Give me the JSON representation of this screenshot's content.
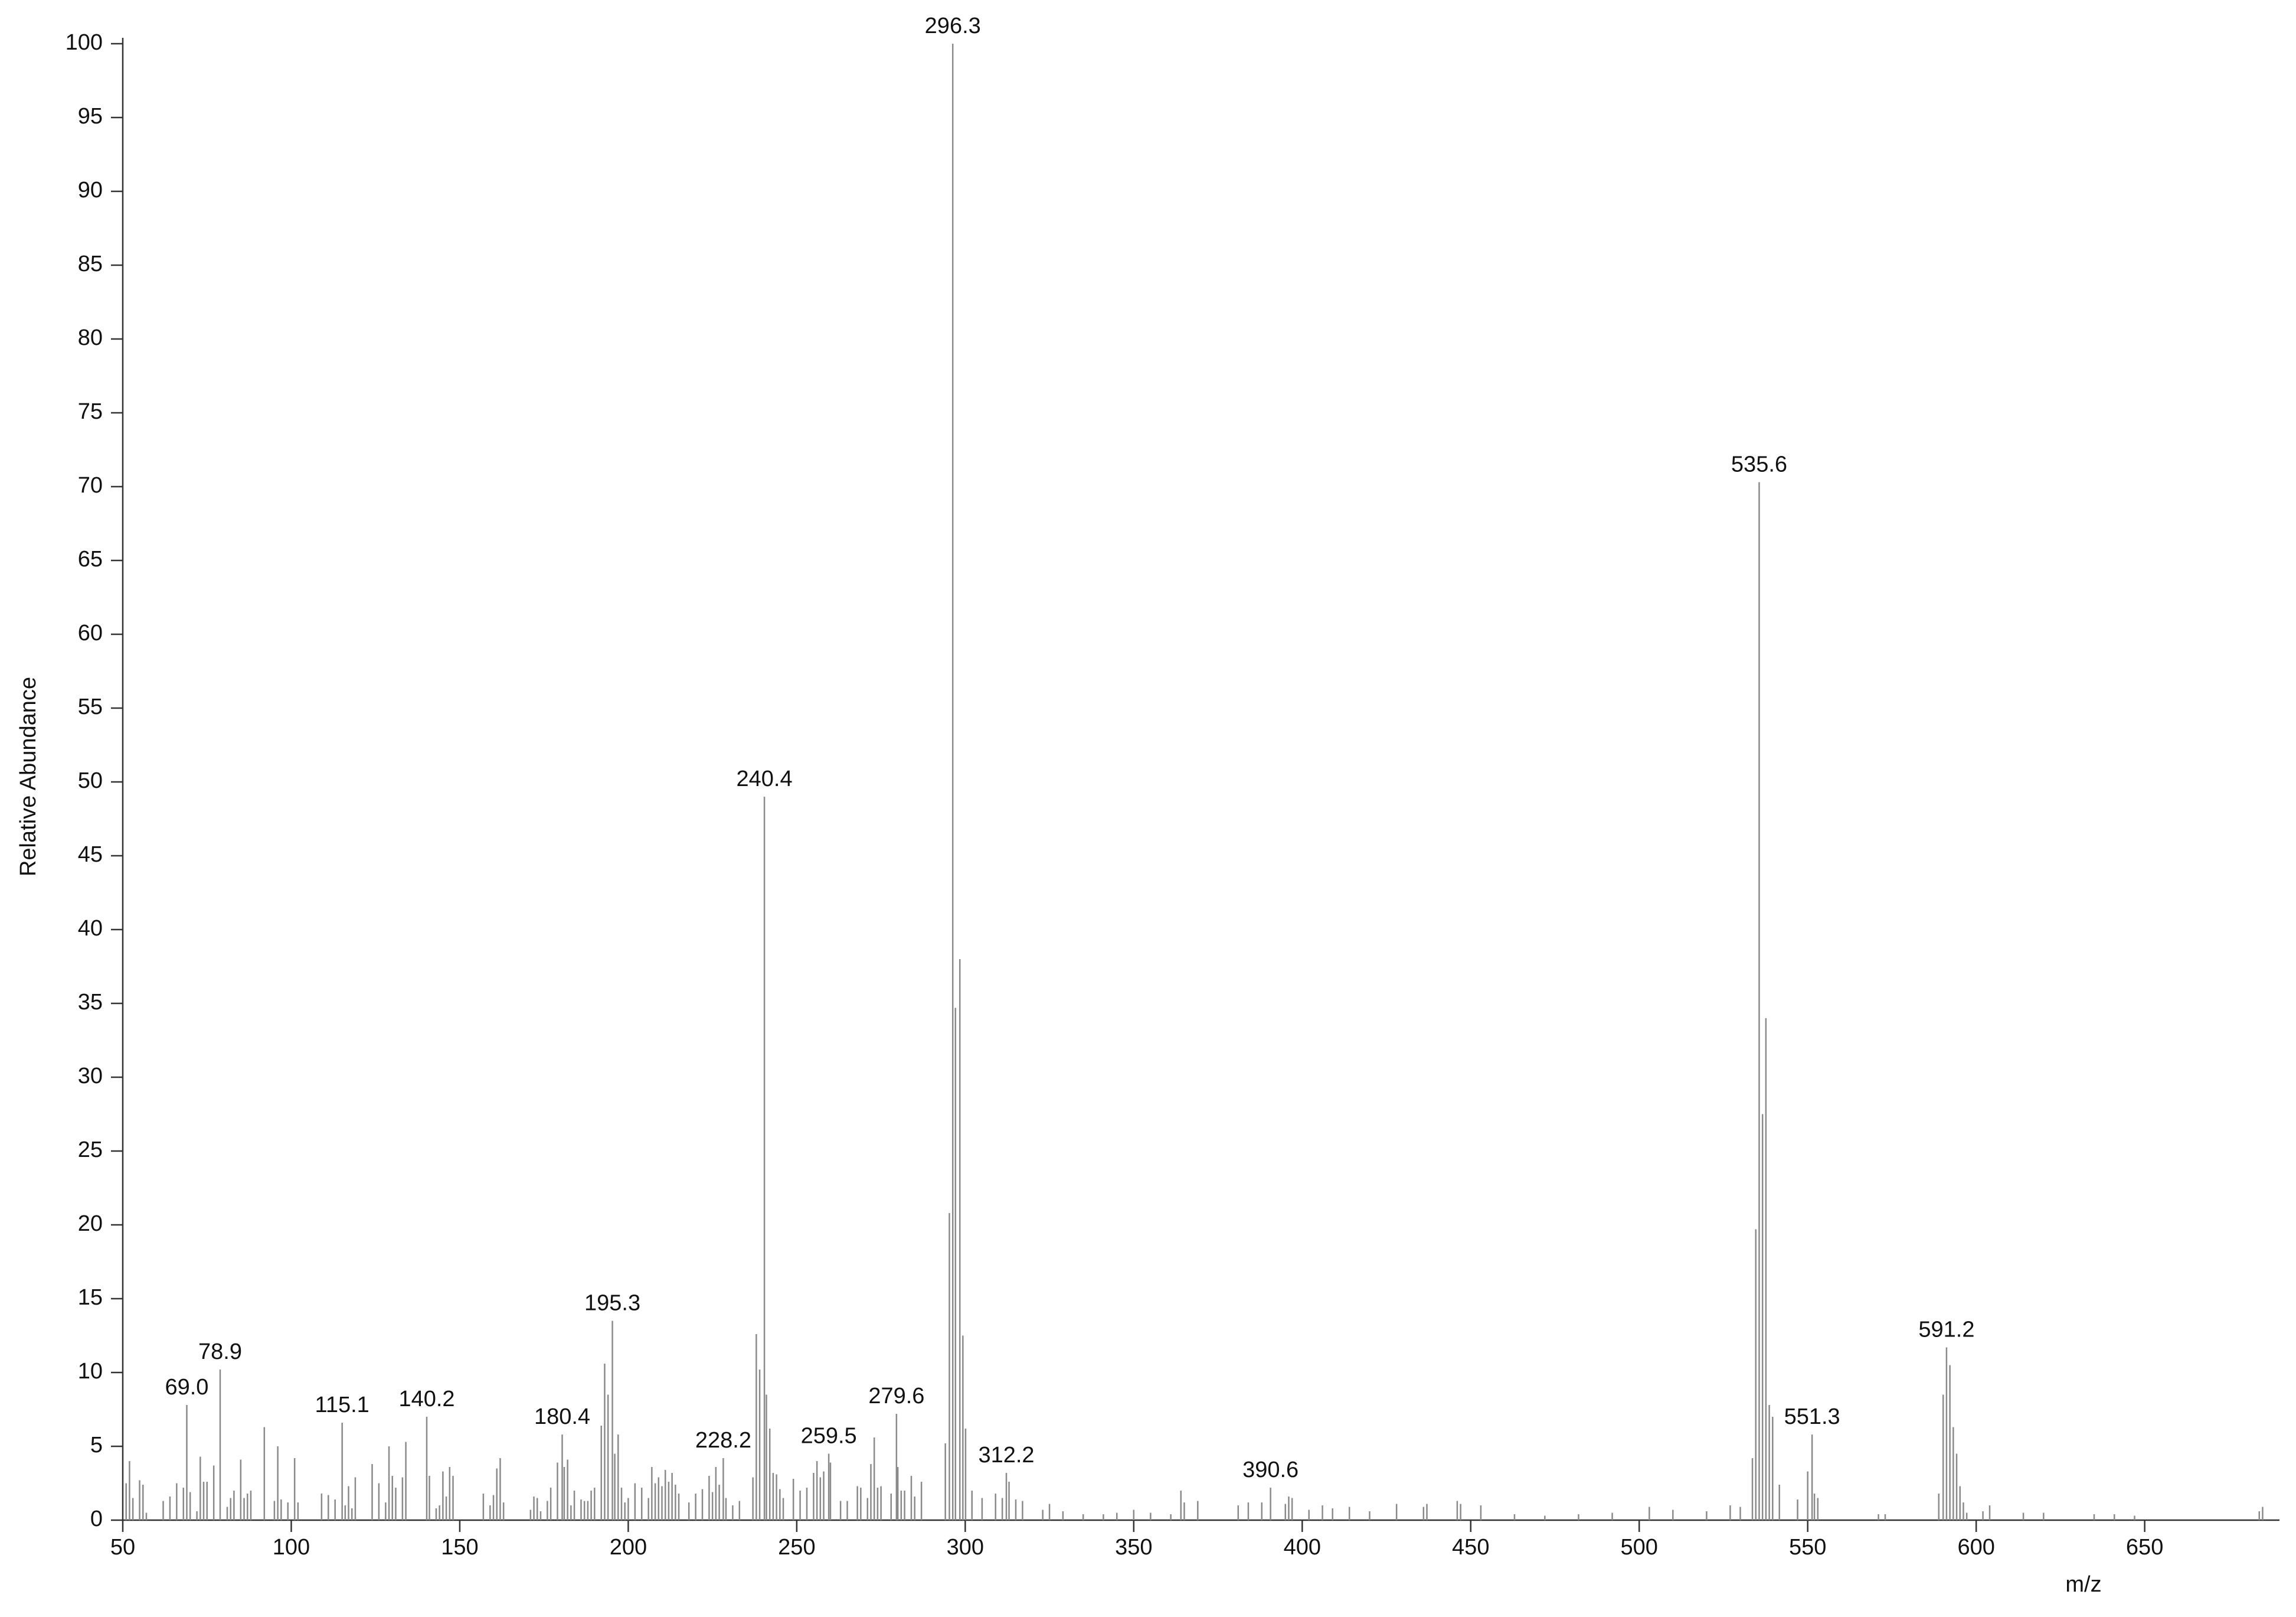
{
  "chart_data": {
    "type": "stem",
    "x_label": "m/z",
    "y_label": "Relative Abundance",
    "color": "#8a8a8a",
    "xlim": [
      50,
      690
    ],
    "xticks": [
      50,
      100,
      150,
      200,
      250,
      300,
      350,
      400,
      450,
      500,
      550,
      600,
      650
    ],
    "ylim": [
      0,
      100
    ],
    "yticks": [
      0,
      5,
      10,
      15,
      20,
      25,
      30,
      35,
      40,
      45,
      50,
      55,
      60,
      65,
      70,
      75,
      80,
      85,
      90,
      95,
      100
    ],
    "x": [
      51,
      52,
      53,
      55,
      56,
      57,
      62,
      64,
      66,
      68,
      69,
      70,
      72,
      73,
      74,
      75,
      77,
      78.9,
      81,
      82,
      83,
      85,
      86,
      87,
      88,
      92,
      95,
      96,
      97,
      99,
      101,
      102,
      109,
      111,
      113,
      115.1,
      116,
      117,
      118,
      119,
      124,
      126,
      128,
      129,
      130,
      131,
      133,
      134,
      140.2,
      141,
      143,
      144,
      145,
      146,
      147,
      148,
      157,
      159,
      160,
      161,
      162,
      163,
      171,
      172,
      173,
      174,
      176,
      177,
      179,
      180.4,
      181,
      182,
      183,
      184,
      186,
      187,
      188,
      189,
      190,
      192,
      193,
      194,
      195.3,
      196,
      197,
      198,
      199,
      200,
      202,
      204,
      206,
      207,
      208,
      209,
      210,
      211,
      212,
      213,
      214,
      215,
      218,
      220,
      222,
      224,
      225,
      226,
      227,
      228.2,
      229,
      231,
      233,
      237,
      238,
      239,
      240.4,
      241,
      242,
      243,
      244,
      245,
      246,
      249,
      251,
      253,
      255,
      256,
      257,
      258,
      259.5,
      260,
      263,
      265,
      268,
      269,
      271,
      272,
      273,
      274,
      275,
      278,
      279.6,
      280,
      281,
      282,
      284,
      285,
      287,
      294.1,
      295.3,
      296.3,
      297.1,
      298.4,
      299.3,
      300.1,
      302,
      305,
      309,
      311,
      312.2,
      313,
      315,
      317,
      323,
      325,
      329,
      335,
      341,
      345,
      350,
      355,
      361,
      364,
      365,
      369,
      381,
      384,
      388,
      390.6,
      395,
      396,
      397,
      402,
      406,
      409,
      414,
      420,
      428,
      436,
      437,
      446,
      447,
      453,
      463,
      472,
      482,
      492,
      503,
      510,
      520,
      527,
      530,
      533.6,
      534.6,
      535.6,
      536.6,
      537.6,
      538.6,
      539.6,
      541.6,
      547,
      550,
      551.3,
      552,
      553,
      571,
      573,
      588.9,
      590.2,
      591.2,
      592.2,
      593.2,
      594.2,
      595.2,
      596.2,
      597.2,
      602,
      604,
      614,
      620,
      635,
      641,
      647,
      684,
      685
    ],
    "values": [
      2.5,
      4.0,
      1.5,
      2.7,
      2.4,
      0.5,
      1.3,
      1.6,
      2.5,
      2.2,
      7.8,
      1.9,
      0.6,
      4.3,
      2.6,
      2.6,
      3.7,
      10.2,
      0.9,
      1.5,
      2.0,
      4.1,
      1.5,
      1.8,
      2.0,
      6.3,
      1.3,
      5.0,
      1.4,
      1.2,
      4.2,
      1.2,
      1.8,
      1.7,
      1.4,
      6.6,
      1.0,
      2.3,
      0.8,
      2.9,
      3.8,
      2.5,
      1.2,
      5.0,
      3.0,
      2.2,
      2.9,
      5.3,
      7.0,
      3.0,
      0.8,
      1.0,
      3.3,
      1.6,
      3.6,
      3.0,
      1.8,
      1.0,
      1.7,
      3.5,
      4.2,
      1.2,
      0.7,
      1.6,
      1.5,
      0.6,
      1.3,
      2.2,
      3.9,
      5.8,
      3.6,
      4.1,
      1.0,
      2.0,
      1.4,
      1.3,
      1.3,
      2.0,
      2.2,
      6.4,
      10.6,
      8.5,
      13.5,
      4.5,
      5.8,
      2.2,
      1.2,
      1.5,
      2.5,
      2.2,
      1.5,
      3.6,
      2.5,
      2.9,
      2.3,
      3.4,
      2.6,
      3.2,
      2.4,
      1.8,
      1.2,
      1.8,
      2.1,
      3.0,
      1.9,
      3.6,
      2.4,
      4.2,
      1.5,
      1.0,
      1.3,
      2.9,
      12.6,
      10.2,
      49,
      8.5,
      6.2,
      3.2,
      3.1,
      2.1,
      1.5,
      2.8,
      2.0,
      2.2,
      3.2,
      4.0,
      2.9,
      3.3,
      4.5,
      3.9,
      1.3,
      1.3,
      2.3,
      2.2,
      1.5,
      3.8,
      5.6,
      2.2,
      2.3,
      1.8,
      7.2,
      3.6,
      2.0,
      2.0,
      3.0,
      1.6,
      2.6,
      5.2,
      20.8,
      100,
      34.7,
      38,
      12.5,
      6.2,
      2.0,
      1.5,
      1.8,
      1.5,
      3.2,
      2.6,
      1.4,
      1.3,
      0.7,
      1.1,
      0.6,
      0.4,
      0.4,
      0.5,
      0.7,
      0.5,
      0.4,
      2.0,
      1.2,
      1.3,
      1.0,
      1.2,
      1.2,
      2.2,
      1.1,
      1.6,
      1.5,
      0.7,
      1.0,
      0.8,
      0.9,
      0.6,
      1.1,
      0.9,
      1.1,
      1.3,
      1.1,
      1.0,
      0.4,
      0.3,
      0.4,
      0.5,
      0.9,
      0.7,
      0.6,
      1.0,
      0.9,
      4.2,
      19.7,
      70.3,
      27.5,
      34,
      7.8,
      7.0,
      2.4,
      1.4,
      3.3,
      5.8,
      1.8,
      1.5,
      0.4,
      0.4,
      1.8,
      8.5,
      11.7,
      10.5,
      6.3,
      4.5,
      2.3,
      1.2,
      0.5,
      0.6,
      1.0,
      0.5,
      0.5,
      0.4,
      0.4,
      0.3,
      0.6,
      0.9
    ],
    "peak_labels": [
      {
        "value": 69,
        "label": "69.0"
      },
      {
        "value": 78.9,
        "label": "78.9"
      },
      {
        "value": 115.1,
        "label": "115.1"
      },
      {
        "value": 140.2,
        "label": "140.2"
      },
      {
        "value": 180.4,
        "label": "180.4"
      },
      {
        "value": 195.3,
        "label": "195.3"
      },
      {
        "value": 228.2,
        "label": "228.2"
      },
      {
        "value": 240.4,
        "label": "240.4"
      },
      {
        "value": 259.5,
        "label": "259.5"
      },
      {
        "value": 279.6,
        "label": "279.6"
      },
      {
        "value": 296.3,
        "label": "296.3"
      },
      {
        "value": 312.2,
        "label": "312.2"
      },
      {
        "value": 390.6,
        "label": "390.6"
      },
      {
        "value": 535.6,
        "label": "535.6"
      },
      {
        "value": 551.3,
        "label": "551.3"
      },
      {
        "value": 591.2,
        "label": "591.2"
      }
    ]
  }
}
